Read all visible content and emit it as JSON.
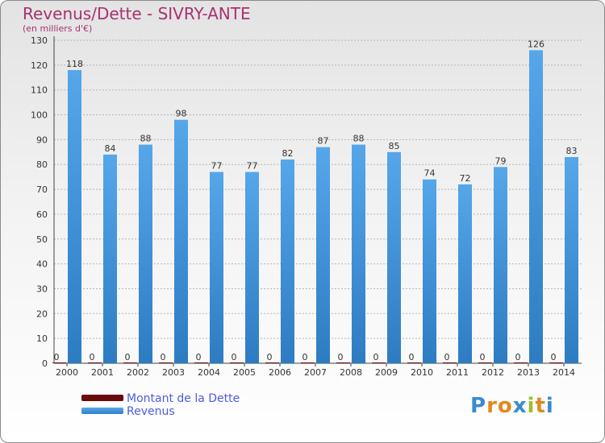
{
  "header": {
    "title": "Revenus/Dette - SIVRY-ANTE",
    "subtitle": "(en milliers d'€)"
  },
  "chart_data": {
    "type": "bar",
    "title": "Revenus/Dette - SIVRY-ANTE",
    "subtitle": "(en milliers d'€)",
    "xlabel": "",
    "ylabel": "",
    "ylim": [
      0,
      130
    ],
    "yticks": [
      0,
      10,
      20,
      30,
      40,
      50,
      60,
      70,
      80,
      90,
      100,
      110,
      120,
      130
    ],
    "grid": true,
    "categories": [
      "2000",
      "2001",
      "2002",
      "2003",
      "2004",
      "2005",
      "2006",
      "2007",
      "2008",
      "2009",
      "2010",
      "2011",
      "2012",
      "2013",
      "2014"
    ],
    "series": [
      {
        "name": "Montant de la Dette",
        "color": "#6b0b0b",
        "values": [
          0,
          0,
          0,
          0,
          0,
          0,
          0,
          0,
          0,
          0,
          0,
          0,
          0,
          0,
          0
        ]
      },
      {
        "name": "Revenus",
        "color": "#3b93dc",
        "values": [
          118,
          84,
          88,
          98,
          77,
          77,
          82,
          87,
          88,
          85,
          74,
          72,
          79,
          126,
          83
        ]
      }
    ],
    "legend_position": "bottom-left"
  },
  "legend": [
    {
      "label": "Montant de la Dette",
      "color": "#6b0b0b"
    },
    {
      "label": "Revenus",
      "color": "#3b93dc"
    }
  ],
  "logo": {
    "letters": [
      "P",
      "r",
      "o",
      "x",
      "i",
      "t",
      "i"
    ],
    "colors": [
      "#3a8ad0",
      "#e08a1e",
      "#e08a1e",
      "#3a8ad0",
      "#9ac12b",
      "#e08a1e",
      "#3a8ad0"
    ]
  }
}
